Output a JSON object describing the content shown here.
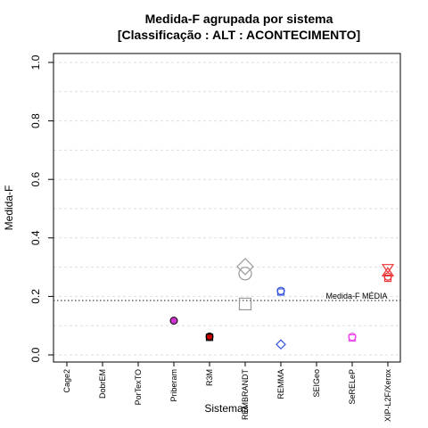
{
  "chart_data": {
    "type": "scatter",
    "title_line1": "Medida-F agrupada por sistema",
    "title_line2": "[Classificação : ALT : ACONTECIMENTO]",
    "xlabel": "Sistemas",
    "ylabel": "Medida-F",
    "ylim": [
      0,
      1
    ],
    "yticks": [
      "0.0",
      "0.2",
      "0.4",
      "0.6",
      "0.8",
      "1.0"
    ],
    "ytick_values": [
      0,
      0.2,
      0.4,
      0.6,
      0.8,
      1.0
    ],
    "grid": true,
    "categories": [
      "Cage2",
      "DobrEM",
      "PorTexTO",
      "Priberam",
      "R3M",
      "REMBRANDT",
      "REMMA",
      "SEIGeo",
      "SeRELeP",
      "XIP-L2F/Xerox"
    ],
    "mean": {
      "value": 0.186,
      "label": "Medida-F MÉDIA"
    },
    "points": [
      {
        "category": "Priberam",
        "y": 0.117,
        "shape": "circle-filled",
        "color": "#cc33cc"
      },
      {
        "category": "R3M",
        "y": 0.063,
        "shape": "circle-filled",
        "color": "#cc0000"
      },
      {
        "category": "R3M",
        "y": 0.06,
        "shape": "square-open",
        "color": "#000000"
      },
      {
        "category": "REMBRANDT",
        "y": 0.302,
        "shape": "diamond-open",
        "color": "#999999"
      },
      {
        "category": "REMBRANDT",
        "y": 0.278,
        "shape": "circle-open",
        "color": "#999999"
      },
      {
        "category": "REMBRANDT",
        "y": 0.174,
        "shape": "square-open",
        "color": "#999999"
      },
      {
        "category": "REMMA",
        "y": 0.219,
        "shape": "circle-open",
        "color": "#3355dd"
      },
      {
        "category": "REMMA",
        "y": 0.215,
        "shape": "square-open",
        "color": "#3355dd"
      },
      {
        "category": "REMMA",
        "y": 0.036,
        "shape": "diamond-open",
        "color": "#3355dd"
      },
      {
        "category": "SeRELeP",
        "y": 0.062,
        "shape": "circle-open",
        "color": "#ee44ee"
      },
      {
        "category": "SeRELeP",
        "y": 0.058,
        "shape": "square-open",
        "color": "#ee44ee"
      },
      {
        "category": "XIP-L2F/Xerox",
        "y": 0.296,
        "shape": "triangle-down-open",
        "color": "#ee3333"
      },
      {
        "category": "XIP-L2F/Xerox",
        "y": 0.283,
        "shape": "triangle-up-open",
        "color": "#ee3333"
      },
      {
        "category": "XIP-L2F/Xerox",
        "y": 0.268,
        "shape": "circle-open",
        "color": "#ee3333"
      },
      {
        "category": "XIP-L2F/Xerox",
        "y": 0.262,
        "shape": "square-open",
        "color": "#ee3333"
      }
    ]
  }
}
